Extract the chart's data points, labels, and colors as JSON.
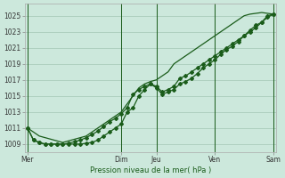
{
  "background_color": "#cce8dc",
  "grid_color": "#aaccbb",
  "line_color": "#1a5c1a",
  "xlabel": "Pression niveau de la mer( hPa )",
  "ylim": [
    1008.0,
    1026.5
  ],
  "yticks": [
    1009,
    1011,
    1013,
    1015,
    1017,
    1019,
    1021,
    1023,
    1025
  ],
  "xtick_labels": [
    "Mer",
    "Dim",
    "Jeu",
    "Ven",
    "Sam"
  ],
  "xtick_positions": [
    0,
    16,
    22,
    32,
    42
  ],
  "vline_positions": [
    0,
    16,
    22,
    32,
    42
  ],
  "num_points": 43,
  "series_smooth": [
    1011.0,
    1010.5,
    1010.0,
    1009.8,
    1009.6,
    1009.4,
    1009.2,
    1009.4,
    1009.6,
    1009.8,
    1010.0,
    1010.5,
    1011.0,
    1011.5,
    1012.0,
    1012.5,
    1013.0,
    1014.0,
    1015.0,
    1016.0,
    1016.5,
    1016.8,
    1017.0,
    1017.5,
    1018.0,
    1019.0,
    1019.5,
    1020.0,
    1020.5,
    1021.0,
    1021.5,
    1022.0,
    1022.5,
    1023.0,
    1023.5,
    1024.0,
    1024.5,
    1025.0,
    1025.2,
    1025.3,
    1025.4,
    1025.3,
    1025.2
  ],
  "series_mid": [
    1011.0,
    1009.5,
    1009.2,
    1009.0,
    1009.0,
    1009.0,
    1009.0,
    1009.1,
    1009.3,
    1009.5,
    1009.8,
    1010.2,
    1010.6,
    1011.2,
    1011.8,
    1012.2,
    1012.8,
    1013.5,
    1015.2,
    1015.8,
    1016.2,
    1016.5,
    1016.2,
    1015.5,
    1015.8,
    1016.2,
    1017.2,
    1017.5,
    1018.0,
    1018.5,
    1019.0,
    1019.5,
    1020.0,
    1020.5,
    1021.0,
    1021.5,
    1022.0,
    1022.5,
    1023.0,
    1023.5,
    1024.2,
    1024.8,
    1025.2
  ],
  "series_low": [
    1011.0,
    1009.5,
    1009.2,
    1009.0,
    1009.0,
    1009.0,
    1009.0,
    1009.0,
    1009.0,
    1009.0,
    1009.1,
    1009.2,
    1009.5,
    1010.0,
    1010.5,
    1011.0,
    1011.5,
    1013.0,
    1013.5,
    1015.0,
    1015.8,
    1016.5,
    1016.0,
    1015.2,
    1015.5,
    1015.8,
    1016.5,
    1016.8,
    1017.2,
    1017.8,
    1018.5,
    1019.0,
    1019.5,
    1020.2,
    1020.8,
    1021.2,
    1021.8,
    1022.5,
    1023.2,
    1023.8,
    1024.2,
    1025.0,
    1025.2
  ]
}
